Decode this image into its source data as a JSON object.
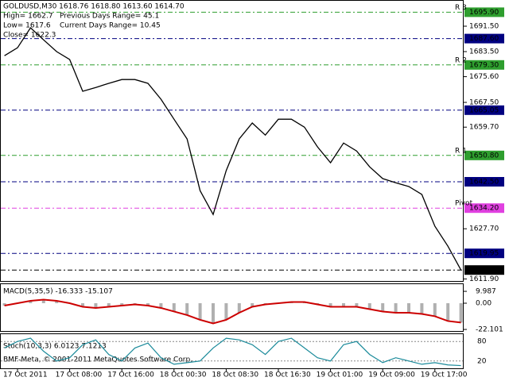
{
  "chart_data": {
    "type": "line",
    "title": "GOLDUSD,M30  1618.76 1618.80 1613.60 1614.70",
    "info": [
      "High= 1662.7",
      "Previous Days Range= 45.1",
      "Low= 1617.6",
      "Current Days Range= 10.45",
      "Close= 1622.3"
    ],
    "categories": [
      null,
      "17 Oct 2011",
      null,
      null,
      null,
      "17 Oct 08:00",
      null,
      null,
      null,
      "17 Oct 16:00",
      null,
      null,
      null,
      "18 Oct 00:30",
      null,
      null,
      null,
      "18 Oct 08:30",
      null,
      null,
      null,
      "18 Oct 16:30",
      null,
      null,
      null,
      "19 Oct 01:00",
      null,
      null,
      null,
      "19 Oct 09:00",
      null,
      null,
      null,
      "19 Oct 17:00",
      null,
      null
    ],
    "series": [
      {
        "color": "#000000",
        "values": [
          1682.2,
          1684.7,
          1691,
          1687.2,
          1683.5,
          1681,
          1671,
          1672.2,
          1673.5,
          1674.7,
          1674.7,
          1673.5,
          1668.5,
          1662.2,
          1656,
          1639.7,
          1632.2,
          1646,
          1656,
          1661,
          1657.2,
          1662.2,
          1662.2,
          1659.7,
          1653.5,
          1648.5,
          1654.7,
          1652.2,
          1647.2,
          1643.5,
          1642.2,
          1641,
          1638.5,
          1628.5,
          1622.2,
          1614.7
        ]
      }
    ],
    "ylim": [
      1611,
      1699.75
    ],
    "yticks": [
      {
        "value": 1691.5,
        "label": "1691.50"
      },
      {
        "value": 1683.5,
        "label": "1683.50"
      },
      {
        "value": 1675.6,
        "label": "1675.60"
      },
      {
        "value": 1667.5,
        "label": "1667.50"
      },
      {
        "value": 1659.7,
        "label": "1659.70"
      },
      {
        "value": 1627.7,
        "label": "1627.70"
      },
      {
        "value": 1611.9,
        "label": "1611.90"
      }
    ],
    "price_labels": [
      {
        "value": 1695.9,
        "label": "1695.90",
        "color": "#2e9e2e",
        "level": "R 3"
      },
      {
        "value": 1687.6,
        "label": "1687.60",
        "color": "#000080"
      },
      {
        "value": 1679.3,
        "label": "1679.30",
        "color": "#2e9e2e",
        "level": "R 2"
      },
      {
        "value": 1665.05,
        "label": "1665.05",
        "color": "#000080"
      },
      {
        "value": 1650.8,
        "label": "1650.80",
        "color": "#2e9e2e",
        "level": "R 1"
      },
      {
        "value": 1642.5,
        "label": "1642.50",
        "color": "#000080"
      },
      {
        "value": 1634.2,
        "label": "1634.20",
        "color": "#e040e0",
        "level": "Pivot"
      },
      {
        "value": 1619.95,
        "label": "1619.95",
        "color": "#000080"
      },
      {
        "value": 1614.7,
        "label": "1614.70",
        "color": "#000000"
      }
    ],
    "macd": {
      "label": "MACD(5,35,5) -16.333 -15.107",
      "color": "#cc0000",
      "bar_color": "#b0b0b0",
      "values": [
        -2,
        0,
        2,
        3,
        2,
        0,
        -3,
        -4,
        -3,
        -2,
        -1,
        -2,
        -4,
        -7,
        -10,
        -14,
        -17,
        -14,
        -8,
        -3,
        -1,
        0,
        1,
        1,
        -1,
        -3,
        -3,
        -3,
        -5,
        -7,
        -8,
        -8,
        -9,
        -11,
        -15,
        -16.3
      ],
      "ylim": [
        -23.4,
        16.7
      ],
      "yticks": [
        9.987,
        {
          "value": 0,
          "label": "0.00"
        },
        -22.101
      ]
    },
    "stoch": {
      "label": "Stoch(10,3,3) 6.0123 7.1213",
      "color": "#1a8a9a",
      "values": [
        60,
        80,
        90,
        50,
        20,
        30,
        70,
        85,
        40,
        20,
        60,
        75,
        30,
        10,
        15,
        20,
        60,
        90,
        85,
        70,
        40,
        80,
        90,
        60,
        30,
        20,
        70,
        80,
        40,
        15,
        30,
        20,
        10,
        15,
        8,
        6
      ],
      "ylim": [
        0,
        100
      ],
      "yticks": [
        80,
        20
      ]
    },
    "footer": "BMF-Meta, © 2001-2011 MetaQuotes Software Corp."
  }
}
